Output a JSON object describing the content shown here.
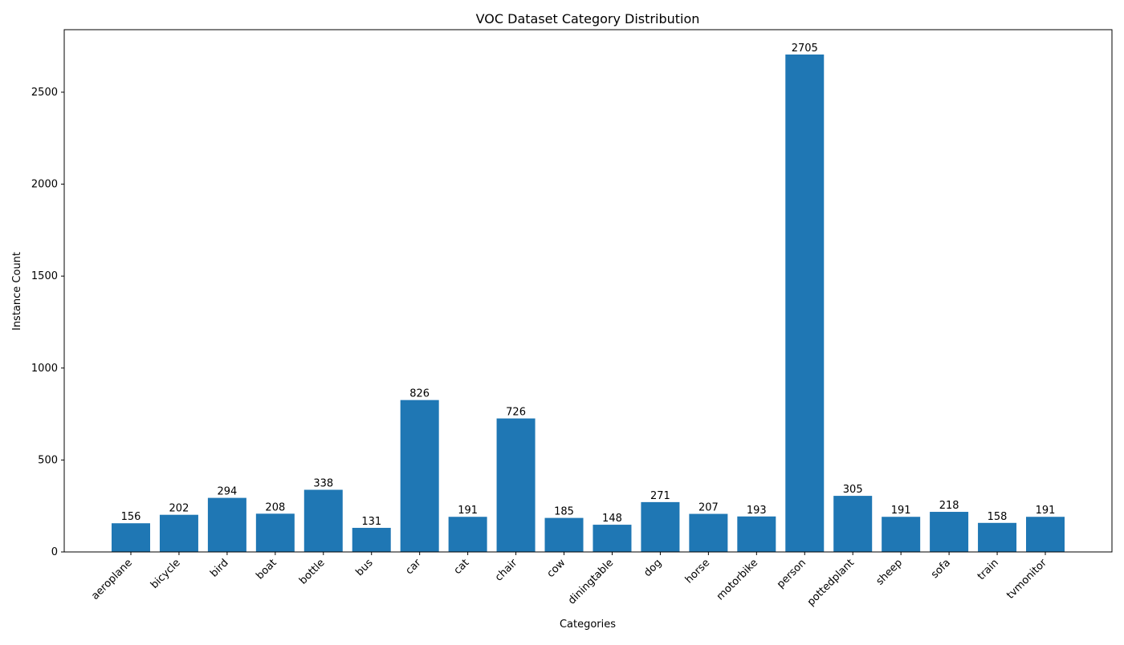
{
  "chart_data": {
    "type": "bar",
    "title": "VOC Dataset Category Distribution",
    "xlabel": "Categories",
    "ylabel": "Instance Count",
    "categories": [
      "aeroplane",
      "bicycle",
      "bird",
      "boat",
      "bottle",
      "bus",
      "car",
      "cat",
      "chair",
      "cow",
      "diningtable",
      "dog",
      "horse",
      "motorbike",
      "person",
      "pottedplant",
      "sheep",
      "sofa",
      "train",
      "tvmonitor"
    ],
    "values": [
      156,
      202,
      294,
      208,
      338,
      131,
      826,
      191,
      726,
      185,
      148,
      271,
      207,
      193,
      2705,
      305,
      191,
      218,
      158,
      191
    ],
    "ylim": [
      0,
      2840
    ],
    "yticks": [
      0,
      500,
      1000,
      1500,
      2000,
      2500
    ],
    "grid": false,
    "bar_color": "#1f77b4",
    "data_labels": true,
    "xtick_rotation": 45
  }
}
